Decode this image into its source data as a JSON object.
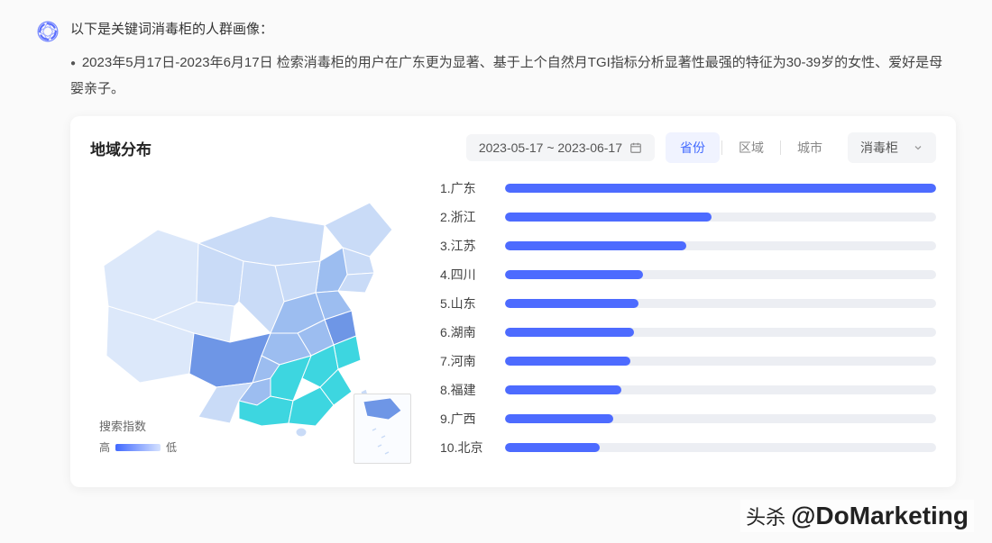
{
  "header": {
    "intro": "以下是关键词消毒柜的人群画像：",
    "bullet": "2023年5月17日-2023年6月17日 检索消毒柜的用户在广东更为显著、基于上个自然月TGI指标分析显著性最强的特征为30-39岁的女性、爱好是母婴亲子。"
  },
  "card": {
    "title": "地域分布",
    "date_range": "2023-05-17 ~ 2023-06-17",
    "tabs": [
      "省份",
      "区域",
      "城市"
    ],
    "active_tab": 0,
    "dropdown_value": "消毒柜",
    "legend_title": "搜索指数",
    "legend_high": "高",
    "legend_low": "低"
  },
  "ranking": {
    "type": "bar",
    "bar_color": "#4d6bff",
    "track_color": "#eceef3",
    "items": [
      {
        "rank": "1",
        "name": "广东",
        "value": 100
      },
      {
        "rank": "2",
        "name": "浙江",
        "value": 48
      },
      {
        "rank": "3",
        "name": "江苏",
        "value": 42
      },
      {
        "rank": "4",
        "name": "四川",
        "value": 32
      },
      {
        "rank": "5",
        "name": "山东",
        "value": 31
      },
      {
        "rank": "6",
        "name": "湖南",
        "value": 30
      },
      {
        "rank": "7",
        "name": "河南",
        "value": 29
      },
      {
        "rank": "8",
        "name": "福建",
        "value": 27
      },
      {
        "rank": "9",
        "name": "广西",
        "value": 25
      },
      {
        "rank": "10",
        "name": "北京",
        "value": 22
      }
    ]
  },
  "map_colors": {
    "base": "#c9dbf7",
    "light": "#dce8fa",
    "mid": "#9cbdf0",
    "dark": "#6e96e6",
    "highlight": "#3dd6e0",
    "stroke": "#ffffff"
  },
  "watermark": {
    "prefix": "头杀",
    "handle": "@DoMarketing"
  }
}
